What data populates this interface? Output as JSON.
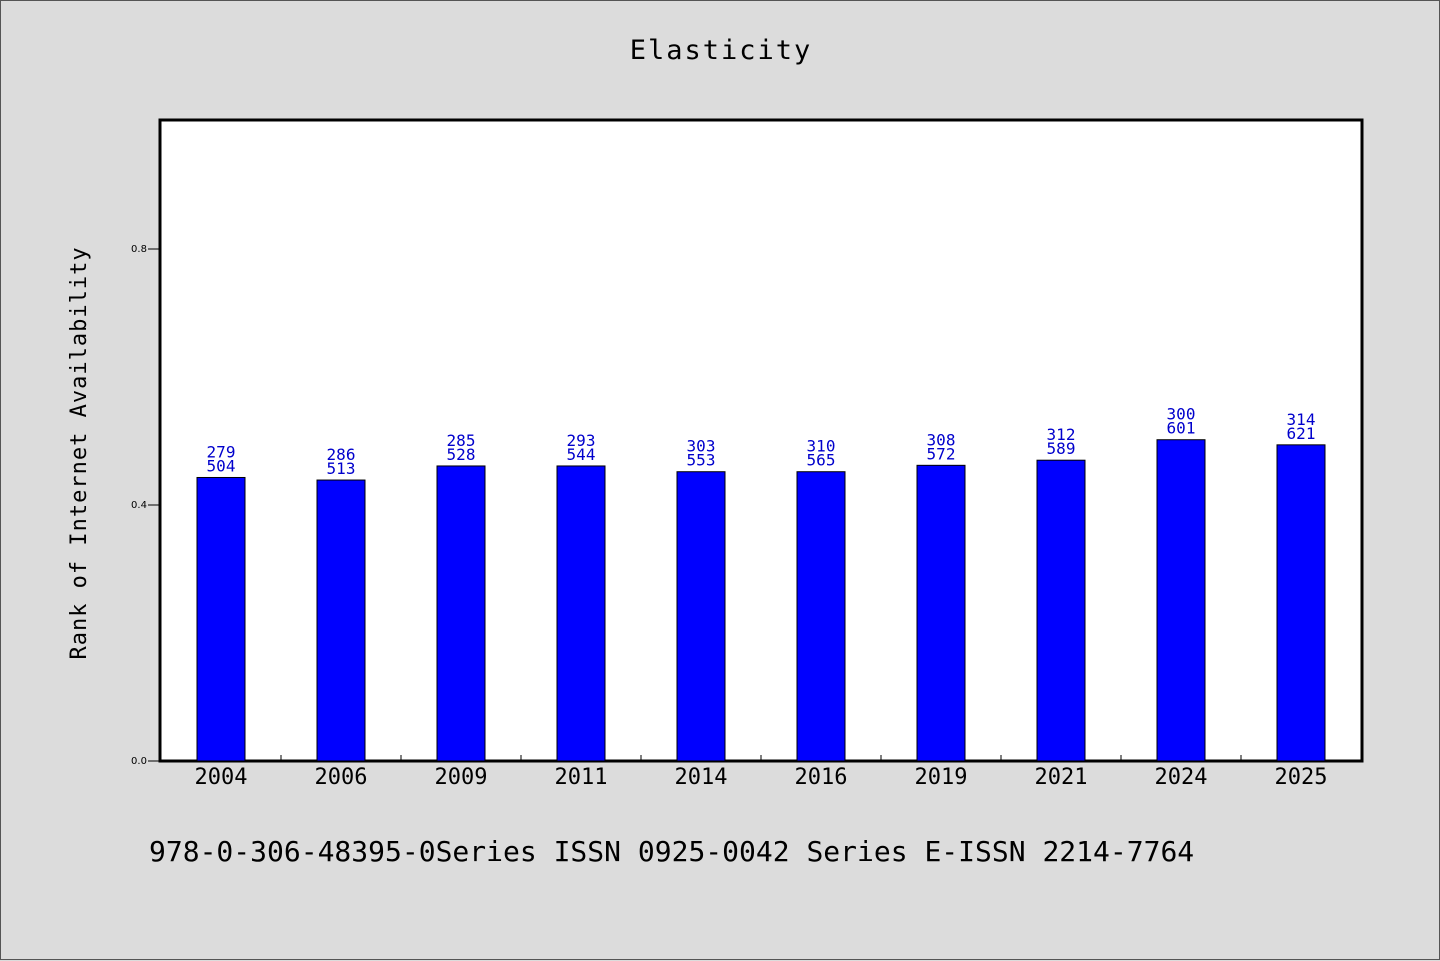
{
  "chart_data": {
    "type": "bar",
    "title": "Elasticity",
    "xlabel": "",
    "ylabel": "Rank of Internet Availability",
    "categories": [
      "2004",
      "2006",
      "2009",
      "2011",
      "2014",
      "2016",
      "2019",
      "2021",
      "2024",
      "2025"
    ],
    "values": [
      0.443,
      0.439,
      0.461,
      0.461,
      0.452,
      0.452,
      0.462,
      0.47,
      0.502,
      0.494
    ],
    "annotations": [
      [
        "279",
        "504"
      ],
      [
        "286",
        "513"
      ],
      [
        "285",
        "528"
      ],
      [
        "293",
        "544"
      ],
      [
        "303",
        "553"
      ],
      [
        "310",
        "565"
      ],
      [
        "308",
        "572"
      ],
      [
        "312",
        "589"
      ],
      [
        "300",
        "601"
      ],
      [
        "314",
        "621"
      ]
    ],
    "yticks": [
      "0.0",
      "0.4",
      "0.8"
    ],
    "ytick_values": [
      0.0,
      0.4,
      0.8
    ],
    "ylim": [
      0.0,
      1.0
    ],
    "grid": false,
    "bar_color": "#0000ff",
    "label_color": "#0000cc"
  },
  "footnote": "978-0-306-48395-0Series ISSN 0925-0042 Series E-ISSN 2214-7764"
}
